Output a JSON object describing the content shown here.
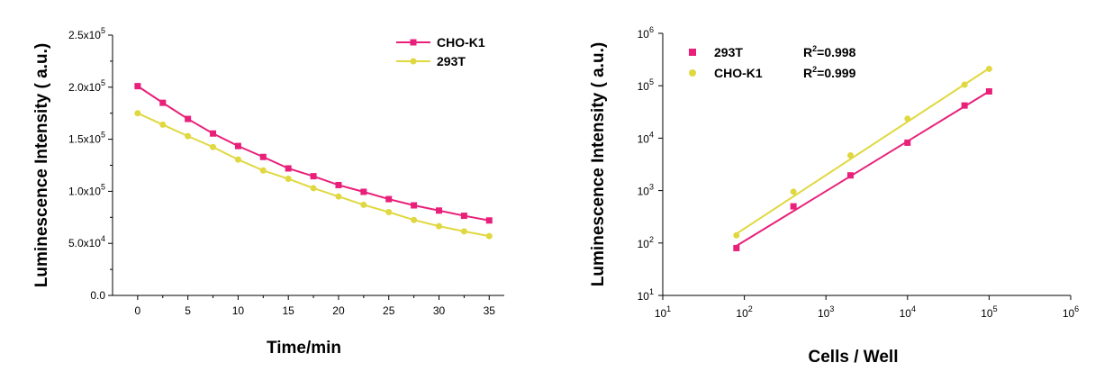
{
  "colors": {
    "series_a": "#e8207a",
    "series_b": "#e0d840",
    "axis": "#000000"
  },
  "chart_data": [
    {
      "type": "line",
      "xlabel": "Time/min",
      "ylabel": "Luminescence Intensity ( a.u.)",
      "xlim": [
        -2.5,
        36.5
      ],
      "ylim": [
        0,
        250000
      ],
      "x_ticks": [
        0,
        5,
        10,
        15,
        20,
        25,
        30,
        35
      ],
      "x_tick_labels": [
        "0",
        "5",
        "10",
        "15",
        "20",
        "25",
        "30",
        "35"
      ],
      "y_ticks": [
        0,
        50000,
        100000,
        150000,
        200000,
        250000
      ],
      "y_tick_labels": [
        {
          "mantissa": "0.0",
          "exp": ""
        },
        {
          "mantissa": "5.0x10",
          "exp": "4"
        },
        {
          "mantissa": "1.0x10",
          "exp": "5"
        },
        {
          "mantissa": "1.5x10",
          "exp": "5"
        },
        {
          "mantissa": "2.0x10",
          "exp": "5"
        },
        {
          "mantissa": "2.5x10",
          "exp": "5"
        }
      ],
      "legend_position": "top-right",
      "series": [
        {
          "name": "CHO-K1",
          "marker": "square",
          "color_key": "series_a",
          "x": [
            0,
            2.5,
            5,
            7.5,
            10,
            12.5,
            15,
            17.5,
            20,
            22.5,
            25,
            27.5,
            30,
            32.5,
            35
          ],
          "y": [
            201000,
            185000,
            169500,
            155500,
            143500,
            133000,
            122000,
            114500,
            106000,
            99500,
            92500,
            86500,
            81500,
            76500,
            72000
          ]
        },
        {
          "name": "293T",
          "marker": "circle",
          "color_key": "series_b",
          "x": [
            0,
            2.5,
            5,
            7.5,
            10,
            12.5,
            15,
            17.5,
            20,
            22.5,
            25,
            27.5,
            30,
            32.5,
            35
          ],
          "y": [
            175000,
            164000,
            153000,
            142500,
            130500,
            120000,
            112000,
            103000,
            95000,
            87000,
            80000,
            72500,
            66500,
            61500,
            57000
          ]
        }
      ]
    },
    {
      "type": "scatter",
      "xlabel": "Cells / Well",
      "ylabel": "Luminescence Intensity ( a.u.)",
      "xscale": "log",
      "yscale": "log",
      "xlim": [
        10,
        1000000
      ],
      "ylim": [
        10,
        1000000
      ],
      "x_ticks": [
        10,
        100,
        1000,
        10000,
        100000,
        1000000
      ],
      "x_tick_labels": [
        {
          "base": "10",
          "exp": "1"
        },
        {
          "base": "10",
          "exp": "2"
        },
        {
          "base": "10",
          "exp": "3"
        },
        {
          "base": "10",
          "exp": "4"
        },
        {
          "base": "10",
          "exp": "5"
        },
        {
          "base": "10",
          "exp": "6"
        }
      ],
      "y_ticks": [
        10,
        100,
        1000,
        10000,
        100000,
        1000000
      ],
      "y_tick_labels": [
        {
          "base": "10",
          "exp": "1"
        },
        {
          "base": "10",
          "exp": "2"
        },
        {
          "base": "10",
          "exp": "3"
        },
        {
          "base": "10",
          "exp": "4"
        },
        {
          "base": "10",
          "exp": "5"
        },
        {
          "base": "10",
          "exp": "6"
        }
      ],
      "legend_position": "top-left",
      "series": [
        {
          "name": "293T",
          "marker": "square",
          "color_key": "series_a",
          "r2_label": "R",
          "r2_exp": "2",
          "r2_value": "=0.998",
          "x": [
            80,
            400,
            2000,
            10000,
            50000,
            100000
          ],
          "y": [
            80,
            500,
            1950,
            8200,
            42000,
            78000
          ],
          "fit": [
            [
              80,
              88
            ],
            [
              100000,
              78000
            ]
          ]
        },
        {
          "name": "CHO-K1",
          "marker": "circle",
          "color_key": "series_b",
          "r2_label": "R",
          "r2_exp": "2",
          "r2_value": "=0.999",
          "x": [
            80,
            400,
            2000,
            10000,
            50000,
            100000
          ],
          "y": [
            140,
            950,
            4700,
            23500,
            105000,
            210000
          ],
          "fit": [
            [
              80,
              150
            ],
            [
              100000,
              215000
            ]
          ]
        }
      ]
    }
  ]
}
